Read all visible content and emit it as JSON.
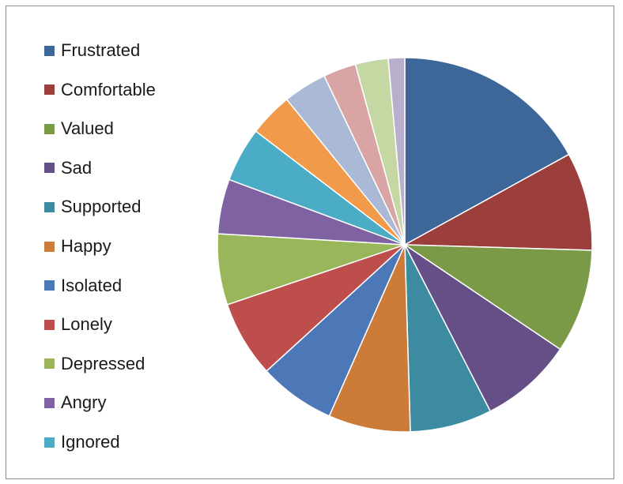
{
  "chart_data": {
    "type": "pie",
    "title": "",
    "legend_position": "left",
    "start_angle": "12 o'clock, clockwise",
    "slices": [
      {
        "label": "Frustrated",
        "value": 18,
        "color": "#3d6699"
      },
      {
        "label": "Comfortable",
        "value": 9,
        "color": "#9c3f3c"
      },
      {
        "label": "Valued",
        "value": 9.5,
        "color": "#7b9a48"
      },
      {
        "label": "Sad",
        "value": 8.5,
        "color": "#664f86"
      },
      {
        "label": "Supported",
        "value": 7.5,
        "color": "#3d8ba1"
      },
      {
        "label": "Happy",
        "value": 7.5,
        "color": "#cc7b38"
      },
      {
        "label": "Isolated",
        "value": 7,
        "color": "#4d78b8"
      },
      {
        "label": "Lonely",
        "value": 7,
        "color": "#bd4e4c"
      },
      {
        "label": "Depressed",
        "value": 6.5,
        "color": "#99b75a"
      },
      {
        "label": "Angry",
        "value": 5,
        "color": "#7e62a1"
      },
      {
        "label": "Ignored",
        "value": 5,
        "color": "#4aacc5"
      },
      {
        "label": "",
        "value": 4,
        "color": "#f09a4a"
      },
      {
        "label": "",
        "value": 4,
        "color": "#a9b9d6"
      },
      {
        "label": "",
        "value": 3,
        "color": "#d9a5a4"
      },
      {
        "label": "",
        "value": 3,
        "color": "#c5d7a3"
      },
      {
        "label": "",
        "value": 1.5,
        "color": "#b9afcc"
      }
    ]
  }
}
